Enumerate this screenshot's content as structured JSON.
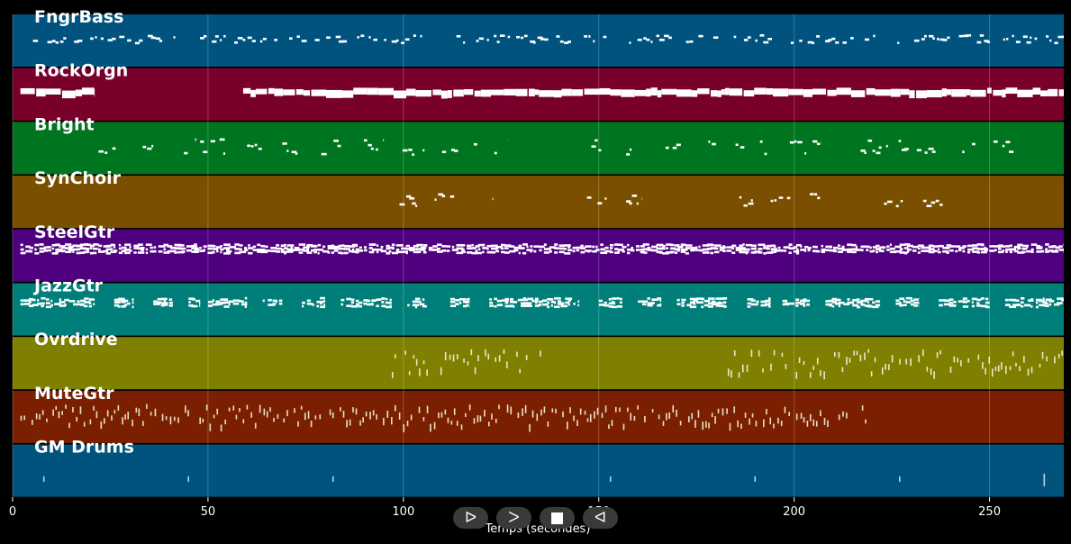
{
  "chart_data": {
    "type": "piano-roll",
    "title": "",
    "xlabel": "Temps (secondes)",
    "ylabel": "",
    "xlim": [
      0,
      269
    ],
    "xticks": [
      0,
      50,
      100,
      150,
      200,
      250
    ],
    "grid": true,
    "tracks": [
      {
        "name": "FngrBass",
        "color": "#00537f",
        "segments": [
          [
            2,
            269
          ]
        ],
        "style": "dots",
        "density": 0.55,
        "spread": 0.15
      },
      {
        "name": "RockOrgn",
        "color": "#7a002c",
        "segments": [
          [
            2,
            21
          ],
          [
            59,
            269
          ]
        ],
        "style": "blocks",
        "density": 0.95,
        "spread": 0.15
      },
      {
        "name": "Bright",
        "color": "#00751f",
        "segments": [
          [
            22,
            27
          ],
          [
            31,
            36
          ],
          [
            41,
            47
          ],
          [
            48,
            56
          ],
          [
            60,
            65
          ],
          [
            69,
            75
          ],
          [
            79,
            84
          ],
          [
            89,
            95
          ],
          [
            99,
            107
          ],
          [
            109,
            114
          ],
          [
            118,
            127
          ],
          [
            147,
            152
          ],
          [
            157,
            162
          ],
          [
            166,
            171
          ],
          [
            176,
            180
          ],
          [
            185,
            193
          ],
          [
            198,
            207
          ],
          [
            217,
            224
          ],
          [
            226,
            238
          ],
          [
            243,
            247
          ],
          [
            251,
            257
          ]
        ],
        "style": "dots",
        "density": 0.6,
        "spread": 0.3
      },
      {
        "name": "SynChoir",
        "color": "#7a4f00",
        "segments": [
          [
            99,
            104
          ],
          [
            108,
            113
          ],
          [
            118,
            123
          ],
          [
            147,
            152
          ],
          [
            157,
            161
          ],
          [
            185,
            190
          ],
          [
            194,
            199
          ],
          [
            204,
            208
          ],
          [
            223,
            228
          ],
          [
            233,
            238
          ]
        ],
        "style": "dots",
        "density": 0.7,
        "spread": 0.25
      },
      {
        "name": "SteelGtr",
        "color": "#4f007f",
        "segments": [
          [
            2,
            269
          ]
        ],
        "style": "dense",
        "density": 1.0,
        "spread": 0.5
      },
      {
        "name": "JazzGtr",
        "color": "#007f7a",
        "segments": [
          [
            2,
            21
          ],
          [
            26,
            31
          ],
          [
            36,
            41
          ],
          [
            45,
            48
          ],
          [
            50,
            60
          ],
          [
            64,
            69
          ],
          [
            74,
            80
          ],
          [
            84,
            97
          ],
          [
            101,
            106
          ],
          [
            112,
            117
          ],
          [
            122,
            145
          ],
          [
            150,
            156
          ],
          [
            160,
            166
          ],
          [
            170,
            183
          ],
          [
            188,
            194
          ],
          [
            197,
            204
          ],
          [
            208,
            222
          ],
          [
            226,
            232
          ],
          [
            237,
            250
          ],
          [
            254,
            269
          ]
        ],
        "style": "dense",
        "density": 0.9,
        "spread": 0.45
      },
      {
        "name": "Ovrdrive",
        "color": "#7f7f00",
        "segments": [
          [
            96,
            136
          ],
          [
            183,
            269
          ]
        ],
        "style": "ticks",
        "density": 0.85,
        "spread": 0.45
      },
      {
        "name": "MuteGtr",
        "color": "#7a2000",
        "segments": [
          [
            2,
            219
          ]
        ],
        "style": "ticks",
        "density": 0.85,
        "spread": 0.4
      },
      {
        "name": "GM Drums",
        "color": "#00537f",
        "segments": [],
        "style": "hits",
        "hits": [
          8,
          45,
          82,
          153,
          190,
          227,
          264
        ]
      }
    ]
  },
  "controls": {
    "play_label": "ᐅ",
    "forward_label": "ᐳ",
    "stop_label": "■",
    "rewind_label": "ᐊ"
  }
}
